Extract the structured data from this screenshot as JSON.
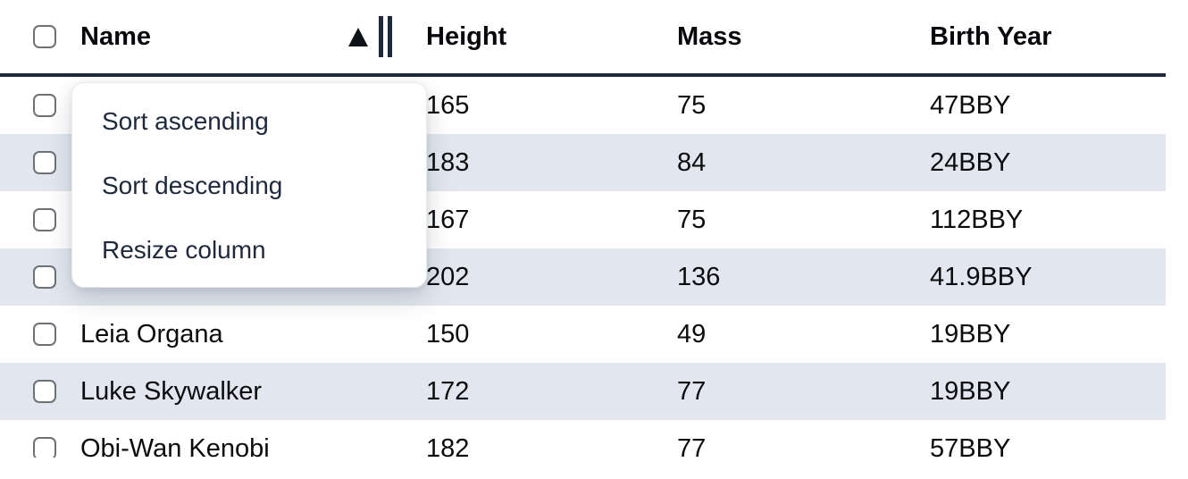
{
  "table": {
    "columns": [
      {
        "label": "Name"
      },
      {
        "label": "Height"
      },
      {
        "label": "Mass"
      },
      {
        "label": "Birth Year"
      }
    ],
    "sort": {
      "column": "Name",
      "direction": "ascending"
    },
    "rows": [
      {
        "name": "",
        "height": "165",
        "mass": "75",
        "birth_year": "47BBY",
        "striped": false
      },
      {
        "name": "",
        "height": "183",
        "mass": "84",
        "birth_year": "24BBY",
        "striped": true
      },
      {
        "name": "",
        "height": "167",
        "mass": "75",
        "birth_year": "112BBY",
        "striped": false
      },
      {
        "name": "",
        "height": "202",
        "mass": "136",
        "birth_year": "41.9BBY",
        "striped": true
      },
      {
        "name": "Leia Organa",
        "height": "150",
        "mass": "49",
        "birth_year": "19BBY",
        "striped": false
      },
      {
        "name": "Luke Skywalker",
        "height": "172",
        "mass": "77",
        "birth_year": "19BBY",
        "striped": true
      },
      {
        "name": "Obi-Wan Kenobi",
        "height": "182",
        "mass": "77",
        "birth_year": "57BBY",
        "striped": false
      }
    ]
  },
  "context_menu": {
    "items": [
      {
        "label": "Sort ascending"
      },
      {
        "label": "Sort descending"
      },
      {
        "label": "Resize column"
      }
    ]
  },
  "colors": {
    "row_stripe": "#e2e7ef",
    "header_border": "#1e2a3a",
    "menu_text": "#1e293b",
    "body_text": "#0a0b0d",
    "checkbox_border": "#6e7176"
  }
}
